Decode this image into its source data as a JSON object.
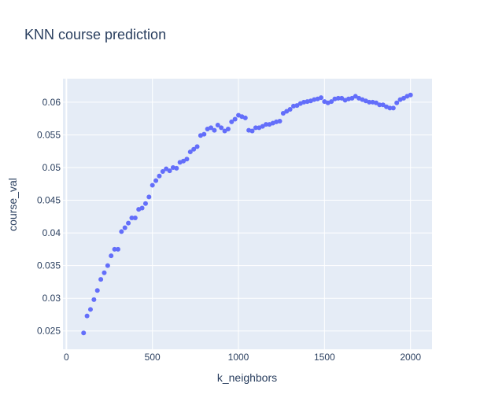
{
  "chart_data": {
    "type": "scatter",
    "title": "KNN course prediction",
    "xlabel": "k_neighbors",
    "ylabel": "course_val",
    "xlim": [
      -20,
      2125
    ],
    "ylim": [
      0.0222,
      0.0636
    ],
    "xticks": [
      0,
      500,
      1000,
      1500,
      2000
    ],
    "xtick_labels": [
      "0",
      "500",
      "1000",
      "1500",
      "2000"
    ],
    "yticks": [
      0.025,
      0.03,
      0.035,
      0.04,
      0.045,
      0.05,
      0.055,
      0.06
    ],
    "ytick_labels": [
      "0.025",
      "0.03",
      "0.035",
      "0.04",
      "0.045",
      "0.05",
      "0.055",
      "0.06"
    ],
    "grid": true,
    "colors": {
      "marker": "#636efa",
      "plot_bg": "#e5ecf6",
      "grid": "#ffffff",
      "text": "#2a3f5f"
    },
    "series": [
      {
        "x": [
          100,
          120,
          140,
          160,
          180,
          200,
          220,
          240,
          260,
          280,
          300,
          320,
          340,
          360,
          380,
          400,
          420,
          440,
          460,
          480,
          500,
          520,
          540,
          560,
          580,
          600,
          620,
          640,
          660,
          680,
          700,
          720,
          740,
          760,
          780,
          800,
          820,
          840,
          860,
          880,
          900,
          920,
          940,
          960,
          980,
          1000,
          1020,
          1040,
          1060,
          1080,
          1100,
          1120,
          1140,
          1160,
          1180,
          1200,
          1220,
          1240,
          1260,
          1280,
          1300,
          1320,
          1340,
          1360,
          1380,
          1400,
          1420,
          1440,
          1460,
          1480,
          1500,
          1520,
          1540,
          1560,
          1580,
          1600,
          1620,
          1640,
          1660,
          1680,
          1700,
          1720,
          1740,
          1760,
          1780,
          1800,
          1820,
          1840,
          1860,
          1880,
          1900,
          1920,
          1940,
          1960,
          1980,
          2000
        ],
        "y": [
          0.0247,
          0.0273,
          0.0283,
          0.0298,
          0.0312,
          0.0329,
          0.0339,
          0.035,
          0.0365,
          0.0375,
          0.0375,
          0.0402,
          0.0408,
          0.0415,
          0.0423,
          0.0423,
          0.0436,
          0.0438,
          0.0445,
          0.0455,
          0.0473,
          0.048,
          0.0487,
          0.0494,
          0.0498,
          0.0495,
          0.05,
          0.0499,
          0.0508,
          0.051,
          0.0513,
          0.0524,
          0.0528,
          0.0532,
          0.0549,
          0.0551,
          0.0559,
          0.0561,
          0.0557,
          0.0565,
          0.0561,
          0.0556,
          0.0559,
          0.057,
          0.0574,
          0.058,
          0.0578,
          0.0576,
          0.0557,
          0.0556,
          0.0561,
          0.0561,
          0.0563,
          0.0566,
          0.0566,
          0.0568,
          0.057,
          0.0571,
          0.0583,
          0.0586,
          0.0589,
          0.0594,
          0.0595,
          0.0598,
          0.06,
          0.0601,
          0.0602,
          0.0604,
          0.0605,
          0.0607,
          0.0601,
          0.0599,
          0.0601,
          0.0605,
          0.0606,
          0.0606,
          0.0603,
          0.0605,
          0.0606,
          0.0609,
          0.0606,
          0.0604,
          0.0602,
          0.06,
          0.06,
          0.0599,
          0.0596,
          0.0596,
          0.0593,
          0.0591,
          0.0591,
          0.0599,
          0.0604,
          0.0606,
          0.0609,
          0.0611
        ]
      }
    ]
  }
}
